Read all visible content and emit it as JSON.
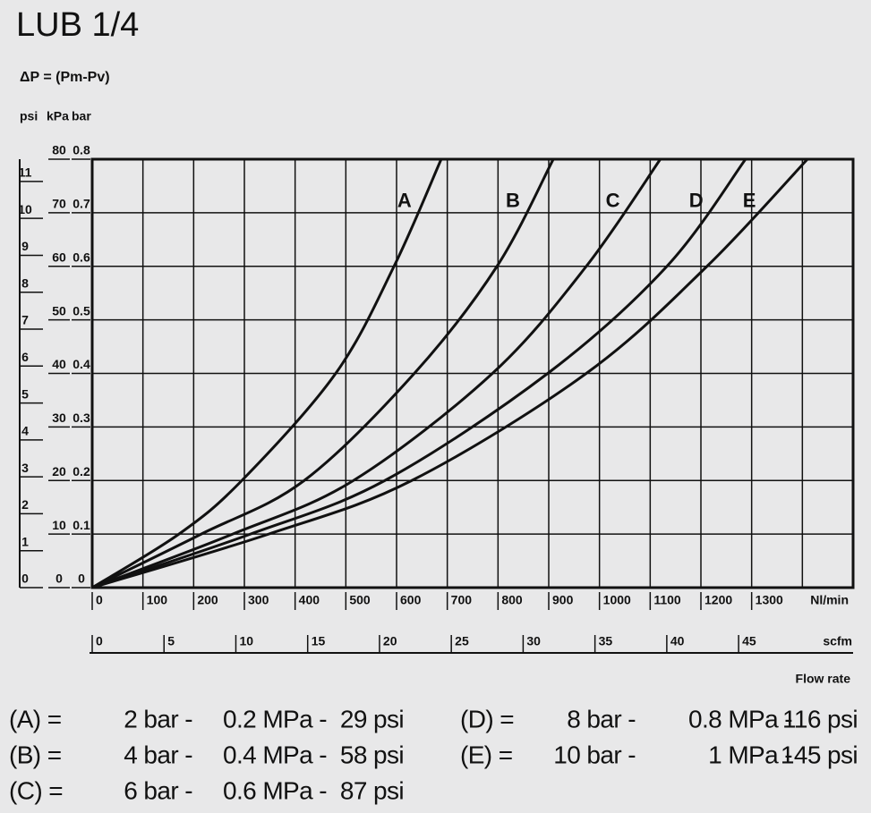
{
  "chart_data": {
    "type": "line",
    "title": "LUB 1/4",
    "subtitle": "ΔP = (Pm-Pv)",
    "color": "#111111",
    "grid": true,
    "y_axes": [
      {
        "label": "psi",
        "lim": [
          0,
          11.603
        ],
        "ticks": [
          0,
          1,
          2,
          3,
          4,
          5,
          6,
          7,
          8,
          9,
          10,
          11
        ]
      },
      {
        "label": "kPa",
        "lim": [
          0,
          80
        ],
        "ticks": [
          0,
          10,
          20,
          30,
          40,
          50,
          60,
          70,
          80
        ]
      },
      {
        "label": "bar",
        "lim": [
          0,
          0.8
        ],
        "ticks": [
          0,
          0.1,
          0.2,
          0.3,
          0.4,
          0.5,
          0.6,
          0.7,
          0.8
        ]
      }
    ],
    "x_axes": [
      {
        "label": "Nl/min",
        "lim": [
          0,
          1500
        ],
        "ticks": [
          0,
          100,
          200,
          300,
          400,
          500,
          600,
          700,
          800,
          900,
          1000,
          1100,
          1200,
          1300
        ],
        "grid": [
          0,
          100,
          200,
          300,
          400,
          500,
          600,
          700,
          800,
          900,
          1000,
          1100,
          1200,
          1300,
          1400,
          1500
        ]
      },
      {
        "label": "scfm",
        "lim": [
          0,
          52.97
        ],
        "ticks": [
          0,
          5,
          10,
          15,
          20,
          25,
          30,
          35,
          40,
          45
        ]
      }
    ],
    "x_label": "Flow rate",
    "series": [
      {
        "name": "A",
        "x": [
          0,
          171,
          295,
          480,
          595,
          688
        ],
        "values": [
          0,
          10,
          20,
          40,
          60,
          80
        ]
      },
      {
        "name": "B",
        "x": [
          0,
          215,
          418,
          635,
          798,
          909
        ],
        "values": [
          0,
          10,
          20,
          40,
          60,
          80
        ]
      },
      {
        "name": "C",
        "x": [
          0,
          277,
          515,
          789,
          974,
          1120
        ],
        "values": [
          0,
          10,
          20,
          40,
          60,
          80
        ]
      },
      {
        "name": "D",
        "x": [
          0,
          312,
          577,
          898,
          1133,
          1288
        ],
        "values": [
          0,
          10,
          20,
          40,
          60,
          80
        ]
      },
      {
        "name": "E",
        "x": [
          0,
          348,
          630,
          974,
          1212,
          1410
        ],
        "values": [
          0,
          10,
          20,
          40,
          60,
          80
        ]
      }
    ],
    "notes": [
      {
        "key": "(A) =",
        "bar": "2 bar -",
        "mpa": "0.2 MPa -",
        "psi": "29 psi"
      },
      {
        "key": "(B) =",
        "bar": "4 bar -",
        "mpa": "0.4 MPa -",
        "psi": "58 psi"
      },
      {
        "key": "(C) =",
        "bar": "6 bar -",
        "mpa": "0.6 MPa -",
        "psi": "87 psi"
      },
      {
        "key": "(D) =",
        "bar": "8 bar -",
        "mpa": "0.8 MPa -",
        "psi": "116 psi"
      },
      {
        "key": "(E) =",
        "bar": "10 bar -",
        "mpa": "1 MPa -",
        "psi": "145 psi"
      }
    ]
  }
}
